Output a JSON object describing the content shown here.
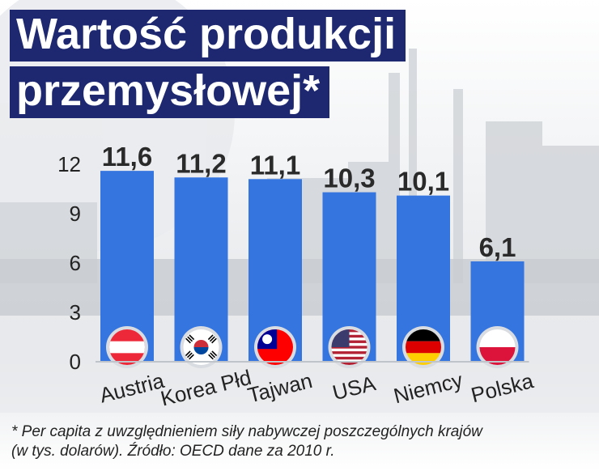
{
  "title": {
    "line1": "Wartość produkcji",
    "line2": "przemysłowej*"
  },
  "chart_data": {
    "type": "bar",
    "categories": [
      "Austria",
      "Korea Płd",
      "Tajwan",
      "USA",
      "Niemcy",
      "Polska"
    ],
    "values": [
      11.6,
      11.2,
      11.1,
      10.3,
      10.1,
      6.1
    ],
    "value_labels": [
      "11,6",
      "11,2",
      "11,1",
      "10,3",
      "10,1",
      "6,1"
    ],
    "yticks": [
      0,
      3,
      6,
      9,
      12
    ],
    "ylim": [
      0,
      13.5
    ],
    "grid": false,
    "legend": "none",
    "bar_color": "#3575e0",
    "flag_icons": [
      "austria-flag-icon",
      "south-korea-flag-icon",
      "taiwan-flag-icon",
      "usa-flag-icon",
      "germany-flag-icon",
      "poland-flag-icon"
    ]
  },
  "footnote": {
    "line1": "* Per capita z uwzględnieniem siły nabywczej poszczególnych krajów",
    "line2": "(w tys. dolarów). Źródło: OECD dane za 2010 r."
  },
  "colors": {
    "title_bg": "#1e2870",
    "bar": "#3575e0",
    "text": "#222222"
  }
}
